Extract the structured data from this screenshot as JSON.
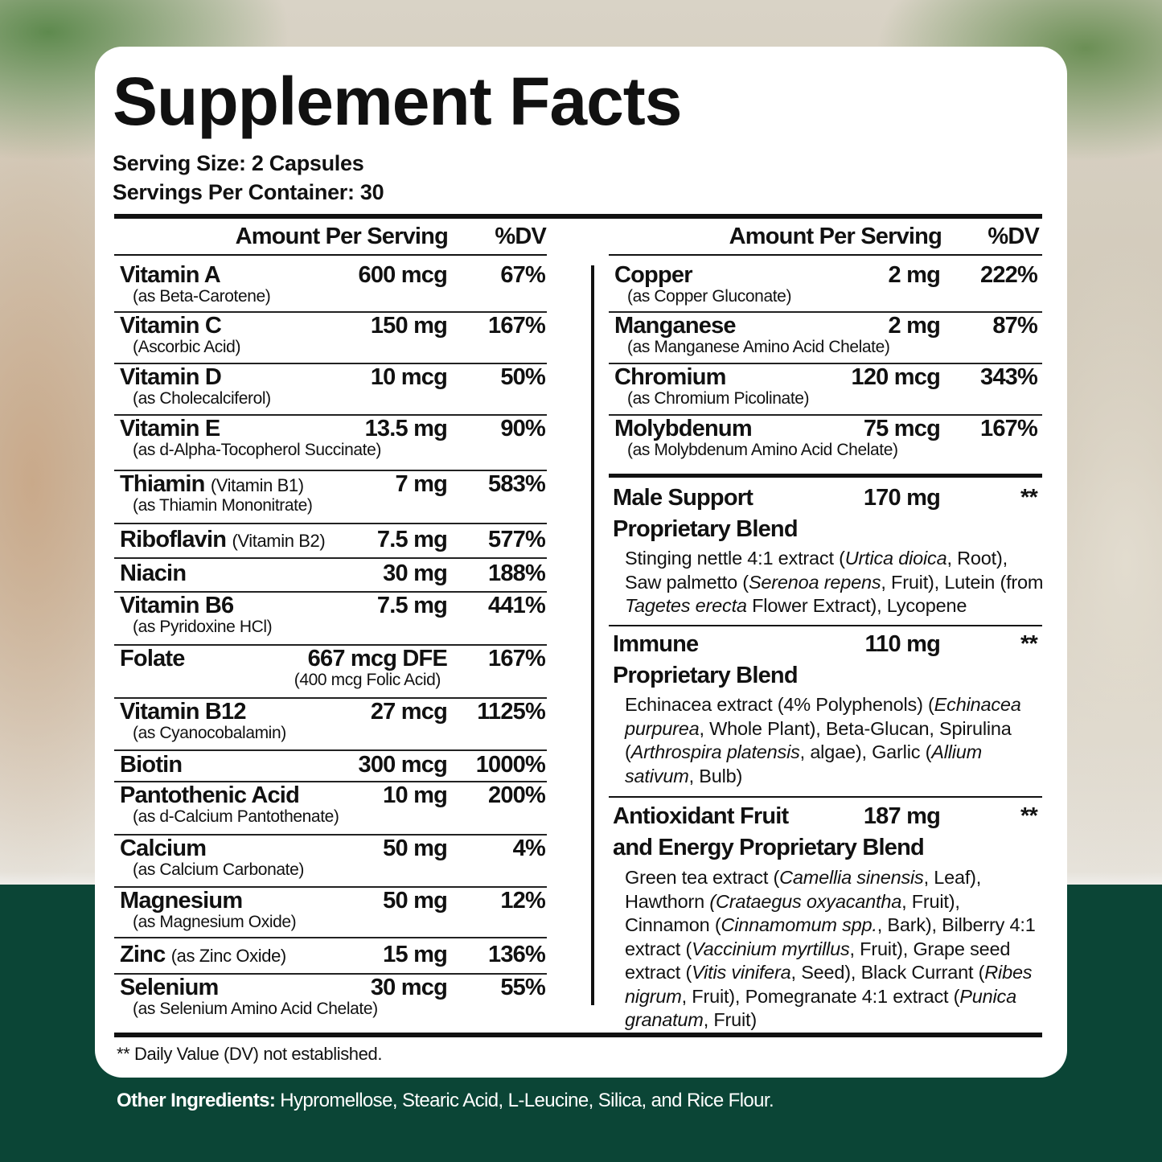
{
  "title": "Supplement Facts",
  "serving_size": "Serving Size: 2 Capsules",
  "servings_per_container": "Servings Per Container: 30",
  "header": {
    "amount": "Amount Per Serving",
    "dv": "%DV"
  },
  "left_rows": [
    {
      "name": "Vitamin A",
      "sub": "(as Beta-Carotene)",
      "amount": "600 mcg",
      "dv": "67%"
    },
    {
      "name": "Vitamin C",
      "sub": "(Ascorbic Acid)",
      "amount": "150 mg",
      "dv": "167%"
    },
    {
      "name": "Vitamin D",
      "sub": "(as Cholecalciferol)",
      "amount": "10 mcg",
      "dv": "50%"
    },
    {
      "name": "Vitamin E",
      "sub": "(as d-Alpha-Tocopherol Succinate)",
      "amount": "13.5 mg",
      "dv": "90%"
    },
    {
      "name": "Thiamin",
      "paren": "(Vitamin B1)",
      "sub": "(as Thiamin Mononitrate)",
      "amount": "7 mg",
      "dv": "583%"
    },
    {
      "name": "Riboflavin",
      "paren": "(Vitamin B2)",
      "amount": "7.5 mg",
      "dv": "577%"
    },
    {
      "name": "Niacin",
      "amount": "30 mg",
      "dv": "188%"
    },
    {
      "name": "Vitamin B6",
      "sub": "(as Pyridoxine HCl)",
      "amount": "7.5 mg",
      "dv": "441%"
    },
    {
      "name": "Folate",
      "amount": "667 mcg DFE",
      "amount_sub": "(400 mcg Folic Acid)",
      "dv": "167%"
    },
    {
      "name": "Vitamin B12",
      "sub": "(as Cyanocobalamin)",
      "amount": "27 mcg",
      "dv": "1125%"
    },
    {
      "name": "Biotin",
      "amount": "300 mcg",
      "dv": "1000%"
    },
    {
      "name": "Pantothenic Acid",
      "sub": "(as d-Calcium Pantothenate)",
      "amount": "10 mg",
      "dv": "200%"
    },
    {
      "name": "Calcium",
      "sub": "(as Calcium Carbonate)",
      "amount": "50 mg",
      "dv": "4%"
    },
    {
      "name": "Magnesium",
      "sub": "(as Magnesium Oxide)",
      "amount": "50 mg",
      "dv": "12%"
    },
    {
      "name": "Zinc",
      "paren": "(as Zinc Oxide)",
      "amount": "15 mg",
      "dv": "136%"
    },
    {
      "name": "Selenium",
      "sub": "(as Selenium Amino Acid Chelate)",
      "amount": "30 mcg",
      "dv": "55%"
    }
  ],
  "right_rows": [
    {
      "name": "Copper",
      "sub": "(as Copper Gluconate)",
      "amount": "2 mg",
      "dv": "222%"
    },
    {
      "name": "Manganese",
      "sub": "(as Manganese Amino Acid Chelate)",
      "amount": "2 mg",
      "dv": "87%"
    },
    {
      "name": "Chromium",
      "sub": "(as Chromium Picolinate)",
      "amount": "120 mcg",
      "dv": "343%"
    },
    {
      "name": "Molybdenum",
      "sub": "(as Molybdenum Amino Acid Chelate)",
      "amount": "75 mcg",
      "dv": "167%"
    }
  ],
  "blends": [
    {
      "name_lines": [
        "Male Support",
        "Proprietary Blend"
      ],
      "amount": "170 mg",
      "dv": "**",
      "desc": [
        {
          "t": "Stinging nettle 4:1 extract ("
        },
        {
          "t": "Urtica dioica",
          "i": true
        },
        {
          "t": ", Root), Saw palmetto ("
        },
        {
          "t": "Serenoa repens",
          "i": true
        },
        {
          "t": ", Fruit), Lutein (from "
        },
        {
          "t": "Tagetes erecta",
          "i": true
        },
        {
          "t": " Flower Extract), Lycopene"
        }
      ]
    },
    {
      "name_lines": [
        "Immune",
        "Proprietary Blend"
      ],
      "amount": "110 mg",
      "dv": "**",
      "desc": [
        {
          "t": "Echinacea extract (4% Polyphenols) ("
        },
        {
          "t": "Echinacea purpurea",
          "i": true
        },
        {
          "t": ", Whole Plant), Beta-Glucan, Spirulina ("
        },
        {
          "t": "Arthrospira platensis",
          "i": true
        },
        {
          "t": ", algae), Garlic ("
        },
        {
          "t": "Allium sativum",
          "i": true
        },
        {
          "t": ", Bulb)"
        }
      ]
    },
    {
      "name_lines": [
        "Antioxidant Fruit",
        "and Energy Proprietary Blend"
      ],
      "amount": "187 mg",
      "dv": "**",
      "desc": [
        {
          "t": "Green tea extract ("
        },
        {
          "t": "Camellia sinensis",
          "i": true
        },
        {
          "t": ", Leaf), Hawthorn "
        },
        {
          "t": "(Crataegus oxyacantha",
          "i": true
        },
        {
          "t": ", Fruit), Cinnamon ("
        },
        {
          "t": "Cinnamomum spp.",
          "i": true
        },
        {
          "t": ", Bark), Bilberry 4:1 extract ("
        },
        {
          "t": "Vaccinium myrtillus",
          "i": true
        },
        {
          "t": ", Fruit), Grape seed extract ("
        },
        {
          "t": "Vitis vinifera",
          "i": true
        },
        {
          "t": ", Seed), Black Currant ("
        },
        {
          "t": "Ribes nigrum",
          "i": true
        },
        {
          "t": ", Fruit), Pomegranate 4:1 extract ("
        },
        {
          "t": "Punica granatum",
          "i": true
        },
        {
          "t": ", Fruit)"
        }
      ]
    }
  ],
  "footnote": "** Daily Value (DV) not established.",
  "other_ingredients": {
    "label": "Other Ingredients:",
    "text": " Hypromellose, Stearic Acid, L-Leucine, Silica, and Rice Flour."
  },
  "colors": {
    "footer_green": "#0b4536",
    "card": "#ffffff",
    "text": "#111111"
  }
}
